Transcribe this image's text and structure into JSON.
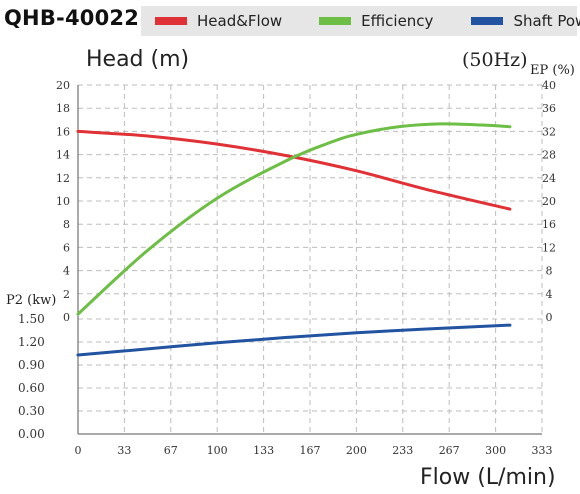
{
  "header": {
    "model": "QHB-40022"
  },
  "legend": [
    {
      "label": "Head&Flow",
      "color": "#e03236"
    },
    {
      "label": "Efficiency",
      "color": "#6dbe45"
    },
    {
      "label": "Shaft Power",
      "color": "#2253a0"
    }
  ],
  "chart_data": {
    "type": "line",
    "frequency_label": "(50Hz)",
    "xlabel": "Flow (L/min)",
    "xlim": [
      0,
      333
    ],
    "x_ticks": [
      "0",
      "33",
      "67",
      "100",
      "133",
      "167",
      "200",
      "233",
      "267",
      "300",
      "333"
    ],
    "y_left_top": {
      "label": "Head (m)",
      "lim": [
        0,
        20
      ],
      "ticks": [
        "0",
        "2",
        "4",
        "6",
        "8",
        "10",
        "12",
        "14",
        "16",
        "18",
        "20"
      ]
    },
    "y_right": {
      "label": "EP (%)",
      "lim": [
        0,
        40
      ],
      "ticks": [
        "0",
        "4",
        "8",
        "12",
        "16",
        "20",
        "24",
        "28",
        "32",
        "36",
        "40"
      ]
    },
    "y_left_bottom": {
      "label": "P2 (kw)",
      "lim": [
        0,
        1.5
      ],
      "ticks": [
        "0.00",
        "0.30",
        "0.60",
        "0.90",
        "1.20",
        "1.50"
      ]
    },
    "grid": true,
    "series": [
      {
        "name": "Head&Flow",
        "axis": "head",
        "color": "#e03236",
        "x": [
          0,
          50,
          100,
          150,
          200,
          250,
          310
        ],
        "y": [
          16.0,
          15.6,
          14.9,
          13.9,
          12.6,
          11.0,
          9.3
        ]
      },
      {
        "name": "Efficiency",
        "axis": "efficiency",
        "color": "#6dbe45",
        "x": [
          0,
          50,
          100,
          150,
          180,
          200,
          230,
          260,
          290,
          310
        ],
        "y": [
          0.5,
          11.5,
          20.5,
          27.0,
          30.0,
          31.5,
          32.8,
          33.3,
          33.1,
          32.8
        ]
      },
      {
        "name": "Shaft Power",
        "axis": "power",
        "color": "#2253a0",
        "x": [
          0,
          50,
          100,
          150,
          200,
          250,
          310
        ],
        "y": [
          1.03,
          1.11,
          1.19,
          1.26,
          1.32,
          1.37,
          1.42
        ]
      }
    ]
  }
}
